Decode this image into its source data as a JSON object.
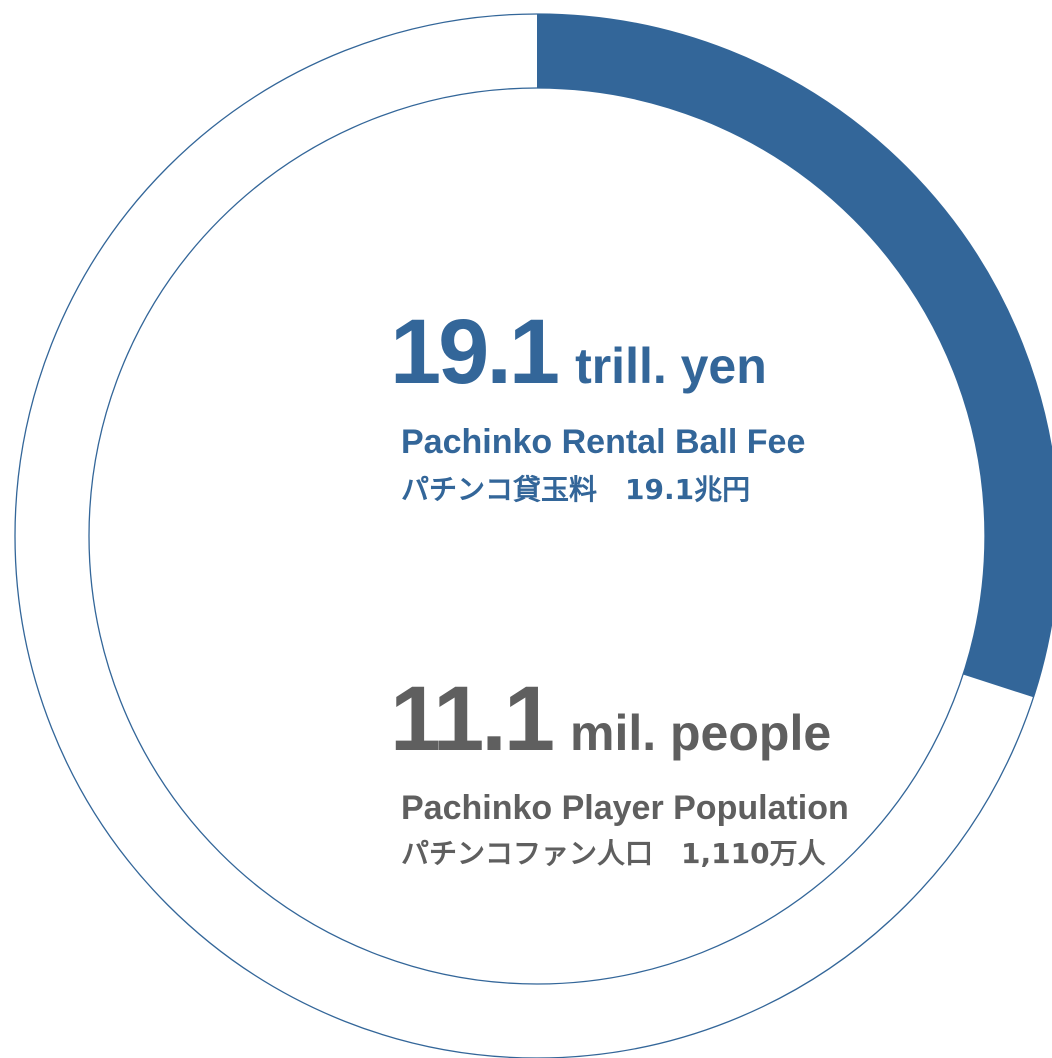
{
  "colors": {
    "ring_fill": "#336699",
    "ring_outline": "#336699",
    "primary_text": "#336699",
    "secondary_text": "#5f5f5f"
  },
  "chart_data": {
    "type": "pie",
    "style": "donut",
    "values": [
      19.1
    ],
    "fill_fraction": 0.3,
    "stats": [
      {
        "value": "19.1",
        "unit": "trill. yen",
        "label_en": "Pachinko Rental Ball Fee",
        "label_ja": "パチンコ貸玉料　19.1兆円"
      },
      {
        "value": "11.1",
        "unit": "mil. people",
        "label_en": "Pachinko Player Population",
        "label_ja": "パチンコファン人口　1,110万人"
      }
    ]
  }
}
